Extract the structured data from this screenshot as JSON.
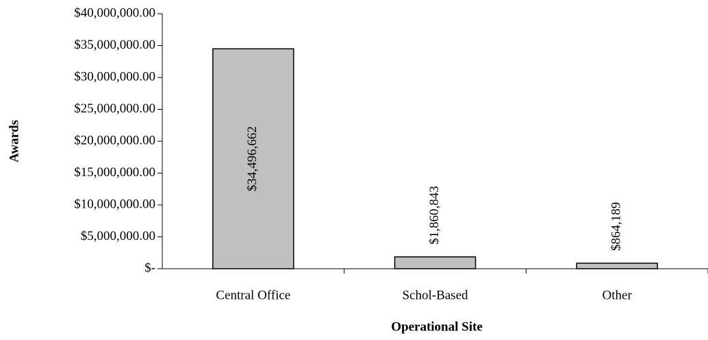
{
  "chart_data": {
    "type": "bar",
    "categories": [
      "Central Office",
      "Schol-Based",
      "Other"
    ],
    "values": [
      34496662,
      1860843,
      864189
    ],
    "value_labels": [
      "$34,496,662",
      "$1,860,843",
      "$864,189"
    ],
    "color": "#c0c0c0",
    "y_label": "Awards",
    "x_label": "Operational Site",
    "ylim": [
      0,
      40000000
    ],
    "yticks": [
      {
        "value": 0,
        "label": "$-"
      },
      {
        "value": 5000000,
        "label": "$5,000,000.00"
      },
      {
        "value": 10000000,
        "label": "$10,000,000.00"
      },
      {
        "value": 15000000,
        "label": "$15,000,000.00"
      },
      {
        "value": 20000000,
        "label": "$20,000,000.00"
      },
      {
        "value": 25000000,
        "label": "$25,000,000.00"
      },
      {
        "value": 30000000,
        "label": "$30,000,000.00"
      },
      {
        "value": 35000000,
        "label": "$35,000,000.00"
      },
      {
        "value": 40000000,
        "label": "$40,000,000.00"
      }
    ],
    "grid": false
  }
}
